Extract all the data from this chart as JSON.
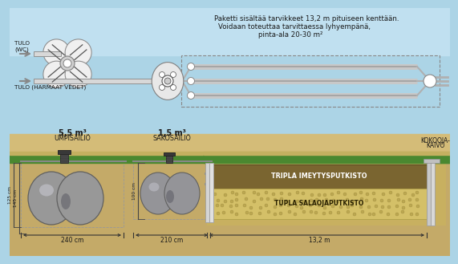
{
  "bg_top_color": "#acd4e6",
  "bg_bottom_color": "#c8a850",
  "ground_green": "#4a8830",
  "soil_tan": "#c8a850",
  "pipe_brown": "#7a6530",
  "sand_beige": "#d8c878",
  "text_dark": "#1a1a1a",
  "tank_gray": "#909098",
  "tank_light": "#b8b8c0",
  "pipe_silver": "#b8b8b8",
  "lobe_white": "#f0f0f0",
  "title_line1": "Paketti sisältää tarvikkeet 13,2 m pituiseen kenttään.",
  "title_line2": "Voidaan toteuttaa tarvittaessa lyhyempänä,",
  "title_line3": "pinta-ala 20-30 m²",
  "label_tulo_wc": "TULO\n(WC)",
  "label_tulo_harmaat": "TULO (HARMAAT VEDET)",
  "label_ump_bold": "5,5 m³",
  "label_ump_normal": "UMPISÄILIÖ",
  "label_sak_bold": "1,5 m³",
  "label_sak_normal": "SAKOSÄILIÖ",
  "label_tripla": "TRIPLA IMEYTYSPUTKISTO",
  "label_tupla": "TUPLA SALAOJAPUTKISTO",
  "label_kokoojakaivo_1": "KOKOOJA-",
  "label_kokoojakaivo_2": "KAIVO",
  "dim_240": "240 cm",
  "dim_210": "210 cm",
  "dim_132": "13,2 m",
  "dim_125": "125 cm",
  "dim_145": "145 cm",
  "dim_100": "100 cm"
}
